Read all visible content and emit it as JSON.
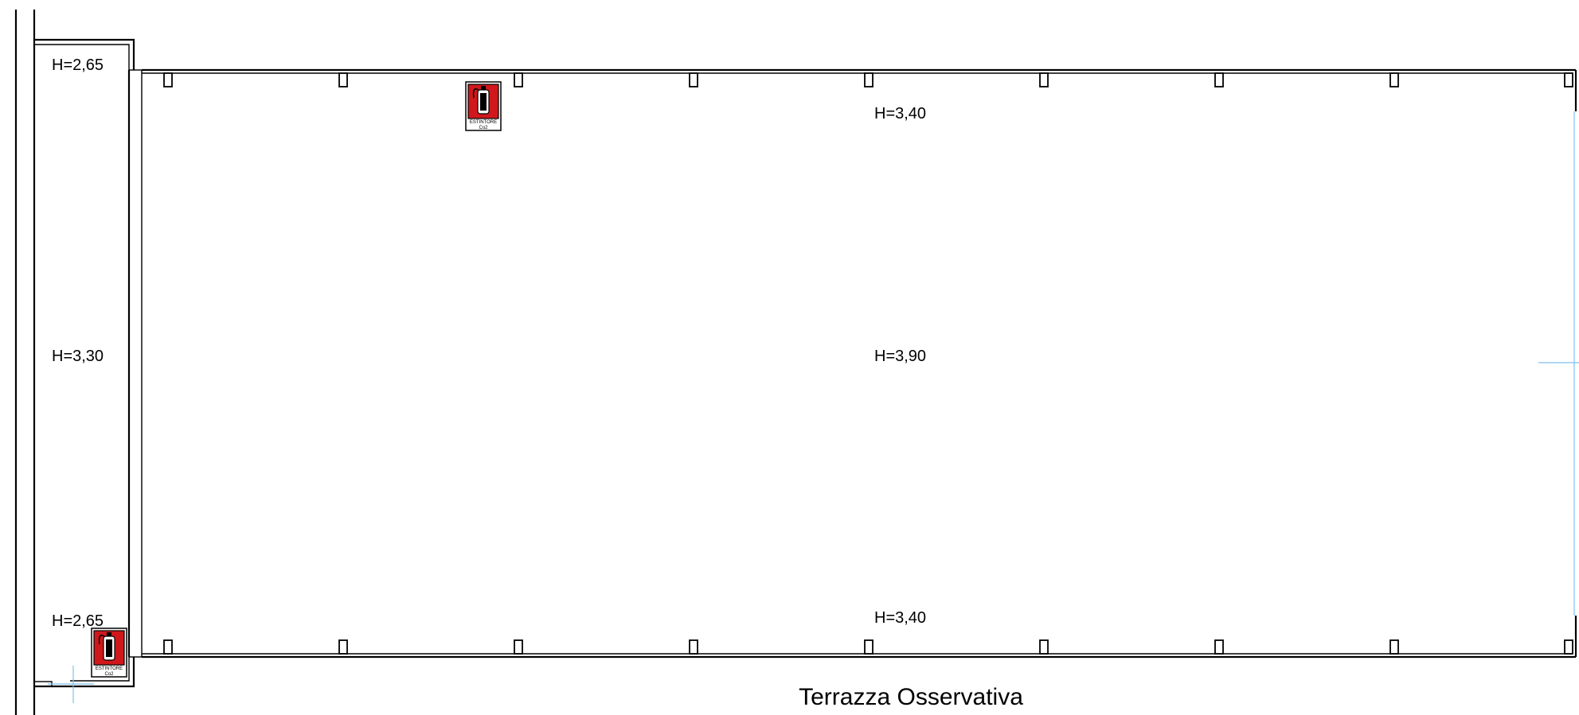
{
  "plan": {
    "title": "Terrazza Osservativa",
    "heights": {
      "top_left": "H=2,65",
      "mid_left": "H=3,30",
      "bottom_left": "H=2,65",
      "top_center": "H=3,40",
      "mid_center": "H=3,90",
      "bottom_center": "H=3,40"
    },
    "extinguishers": [
      {
        "label_line1": "ESTINTORE",
        "label_line2": "Co2"
      },
      {
        "label_line1": "ESTINTORE",
        "label_line2": "Co2"
      }
    ],
    "colors": {
      "walls": "#000000",
      "extinguisher": "#d0181c",
      "guide_lines": "#7ec0ee"
    }
  }
}
